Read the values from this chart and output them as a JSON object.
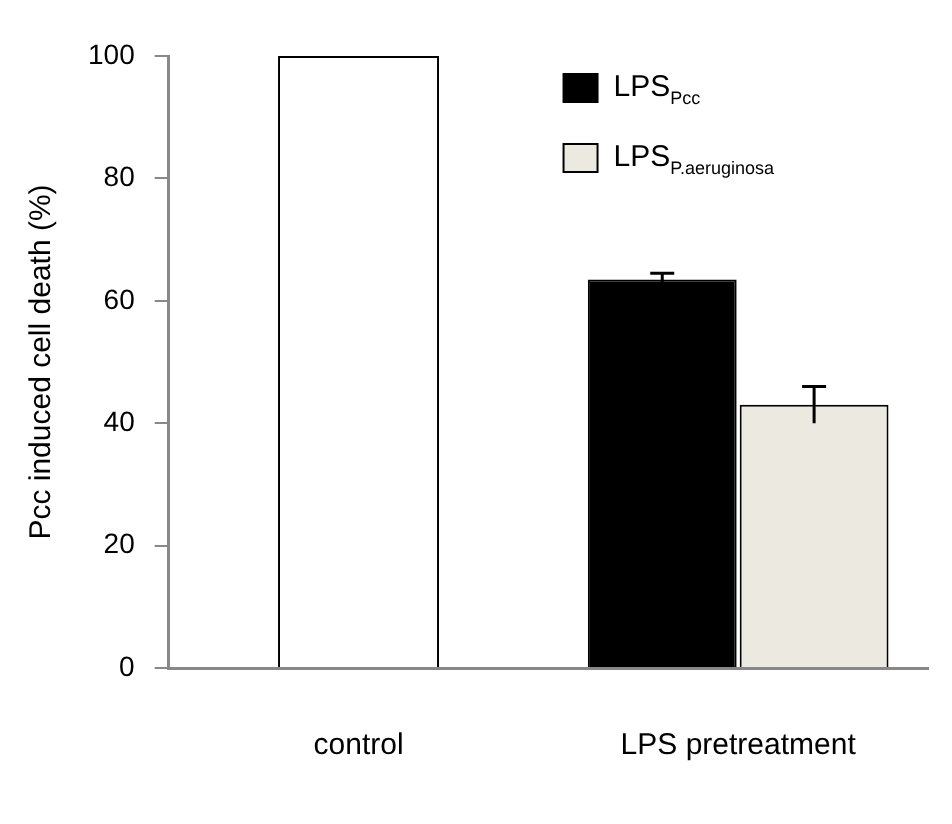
{
  "chart_data": {
    "type": "bar",
    "ylabel": "Pcc induced cell death (%)",
    "categories": [
      "control",
      "LPS pretreatment"
    ],
    "series": [
      {
        "color": "#ffffff",
        "values": [
          100,
          null
        ]
      },
      {
        "name": "LPS$_{Pcc}$",
        "color": "#000000",
        "values": [
          null,
          63.5
        ],
        "errors": [
          null,
          1
        ]
      },
      {
        "name": "LPS$_{P.aeruginosa}$",
        "color": "#ece9e0",
        "values": [
          null,
          43
        ],
        "errors": [
          null,
          3
        ]
      }
    ],
    "ylim": [
      0,
      100
    ],
    "yticks": [
      0,
      20,
      40,
      60,
      80,
      100
    ],
    "grid": false,
    "legend": "top right"
  }
}
